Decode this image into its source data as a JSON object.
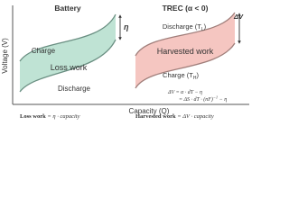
{
  "axes": {
    "y_label": "Voltage (V)",
    "x_label": "Capacity (Q)"
  },
  "battery": {
    "title": "Battery",
    "charge": "Charge",
    "discharge": "Discharge",
    "region": "Loss work",
    "gap": "η",
    "formula": {
      "bold": "Loss work",
      "rest": "= η · capacity"
    }
  },
  "trec": {
    "title": "TREC (α < 0)",
    "discharge": {
      "text": "Discharge (T",
      "subscript": "L",
      "close": ")"
    },
    "charge": {
      "text": "Charge (T",
      "subscript": "H",
      "close": ")"
    },
    "region": "Harvested work",
    "gap": "ΔV",
    "equation_1": "ΔV = α · dT − η",
    "equation_2": {
      "text": "= ΔS · dT · (nF)",
      "superscript": "−1",
      "close": " − η"
    },
    "formula": {
      "bold": "Harvested work",
      "rest": "= ΔV · capacity"
    }
  }
}
